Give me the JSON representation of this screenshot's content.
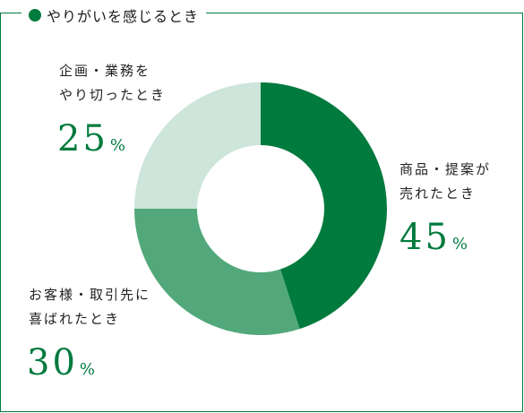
{
  "header": {
    "title": "やりがいを感じるとき"
  },
  "colors": {
    "accent": "#007a3d"
  },
  "chart_data": {
    "type": "pie",
    "title": "やりがいを感じるとき",
    "slices": [
      {
        "label_lines": [
          "商品・提案が",
          "売れたとき"
        ],
        "value": 45,
        "display": "45",
        "unit": "%",
        "color": "#007a3d"
      },
      {
        "label_lines": [
          "お客様・取引先に",
          "喜ばれたとき"
        ],
        "value": 30,
        "display": "30",
        "unit": "%",
        "color": "#52a87a"
      },
      {
        "label_lines": [
          "企画・業務を",
          "やり切ったとき"
        ],
        "value": 25,
        "display": "25",
        "unit": "%",
        "color": "#cde5da"
      }
    ]
  }
}
